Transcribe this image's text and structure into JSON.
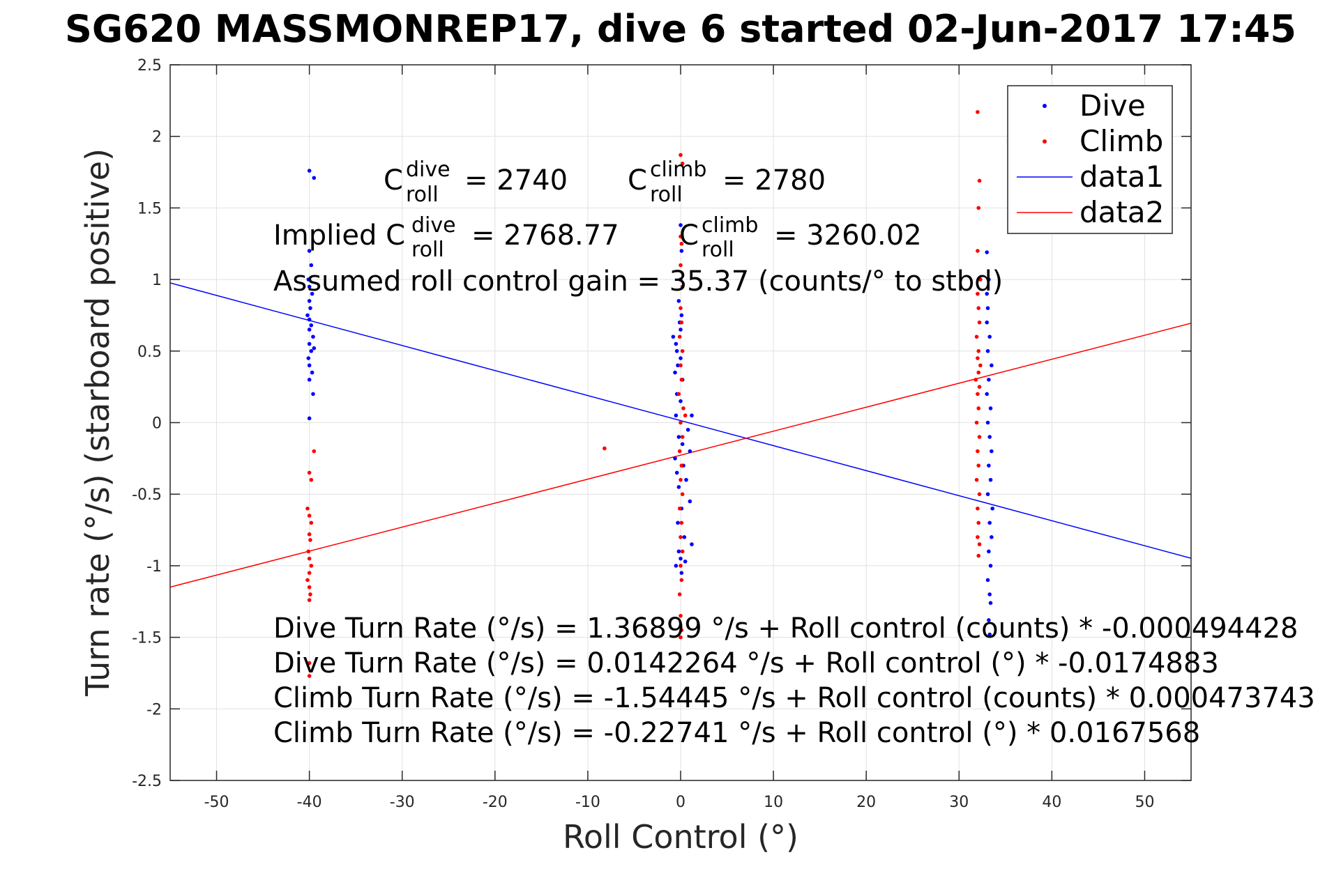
{
  "chart_data": {
    "type": "scatter",
    "title": "SG620 MASSMONREP17, dive 6 started 02-Jun-2017 17:45",
    "xlabel": "Roll Control (°)",
    "ylabel": "Turn rate (°/s) (starboard positive)",
    "xlim": [
      -55,
      55
    ],
    "ylim": [
      -2.5,
      2.5
    ],
    "xticks": [
      -50,
      -40,
      -30,
      -20,
      -10,
      0,
      10,
      20,
      30,
      40,
      50
    ],
    "yticks": [
      2.5,
      2,
      1.5,
      1,
      0.5,
      0,
      -0.5,
      -1,
      -1.5,
      -2,
      -2.5
    ],
    "xtick_labels": [
      "-50",
      "-40",
      "-30",
      "-20",
      "-10",
      "0",
      "10",
      "20",
      "30",
      "40",
      "50"
    ],
    "ytick_labels": [
      "2.5",
      "2",
      "1.5",
      "1",
      "0.5",
      "0",
      "-0.5",
      "-1",
      "-1.5",
      "-2",
      "-2.5"
    ],
    "grid": true,
    "legend_position": "top-right",
    "series": [
      {
        "name": "Dive",
        "kind": "points",
        "color": "#0000ff",
        "points": [
          [
            -40,
            1.76
          ],
          [
            -39.5,
            1.71
          ],
          [
            -40,
            1.2
          ],
          [
            -39.8,
            1.1
          ],
          [
            -40.1,
            1.0
          ],
          [
            -40,
            0.95
          ],
          [
            -39.7,
            0.9
          ],
          [
            -40,
            0.85
          ],
          [
            -39.9,
            0.8
          ],
          [
            -40.2,
            0.75
          ],
          [
            -40,
            0.72
          ],
          [
            -39.8,
            0.68
          ],
          [
            -40,
            0.65
          ],
          [
            -39.6,
            0.6
          ],
          [
            -40,
            0.55
          ],
          [
            -39.8,
            0.5
          ],
          [
            -40.1,
            0.45
          ],
          [
            -39.5,
            0.52
          ],
          [
            -40,
            0.4
          ],
          [
            -39.7,
            0.35
          ],
          [
            -40,
            0.3
          ],
          [
            -39.6,
            0.2
          ],
          [
            -40,
            0.03
          ],
          [
            0,
            1.38
          ],
          [
            0.1,
            1.2
          ],
          [
            0,
            1.0
          ],
          [
            -0.2,
            0.85
          ],
          [
            0.1,
            0.75
          ],
          [
            -0.1,
            0.7
          ],
          [
            0,
            0.65
          ],
          [
            -0.8,
            0.6
          ],
          [
            -0.5,
            0.55
          ],
          [
            -0.4,
            0.5
          ],
          [
            0,
            0.45
          ],
          [
            -0.3,
            0.4
          ],
          [
            -0.6,
            0.35
          ],
          [
            0.2,
            0.3
          ],
          [
            -0.4,
            0.2
          ],
          [
            0,
            0.15
          ],
          [
            -0.5,
            0.05
          ],
          [
            1.2,
            0.05
          ],
          [
            0.8,
            -0.05
          ],
          [
            -0.2,
            -0.1
          ],
          [
            0.2,
            -0.15
          ],
          [
            1.0,
            -0.2
          ],
          [
            -0.6,
            -0.25
          ],
          [
            0.3,
            -0.3
          ],
          [
            -0.4,
            -0.35
          ],
          [
            0.6,
            -0.4
          ],
          [
            -0.2,
            -0.45
          ],
          [
            1.0,
            -0.55
          ],
          [
            0.1,
            -0.6
          ],
          [
            -0.3,
            -0.7
          ],
          [
            0.4,
            -0.8
          ],
          [
            -0.2,
            -0.9
          ],
          [
            1.2,
            -0.85
          ],
          [
            0,
            -0.95
          ],
          [
            -0.5,
            -1.0
          ],
          [
            0.5,
            -0.97
          ],
          [
            0.1,
            -1.05
          ],
          [
            33,
            1.19
          ],
          [
            33.2,
            1.0
          ],
          [
            33,
            0.9
          ],
          [
            33.1,
            0.8
          ],
          [
            33,
            0.7
          ],
          [
            33.3,
            0.6
          ],
          [
            33.1,
            0.5
          ],
          [
            33.5,
            0.4
          ],
          [
            33.2,
            0.3
          ],
          [
            33,
            0.2
          ],
          [
            33.4,
            0.1
          ],
          [
            33.1,
            0.0
          ],
          [
            33.3,
            -0.1
          ],
          [
            33.5,
            -0.2
          ],
          [
            33.2,
            -0.3
          ],
          [
            33.4,
            -0.4
          ],
          [
            33.1,
            -0.5
          ],
          [
            33.6,
            -0.6
          ],
          [
            33.3,
            -0.7
          ],
          [
            33.5,
            -0.8
          ],
          [
            33.2,
            -0.9
          ],
          [
            33.4,
            -1.0
          ],
          [
            33.1,
            -1.1
          ],
          [
            33.3,
            -1.2
          ],
          [
            33.4,
            -1.26
          ],
          [
            33.2,
            -1.38
          ],
          [
            33.3,
            -1.48
          ]
        ]
      },
      {
        "name": "Climb",
        "kind": "points",
        "color": "#ff0000",
        "points": [
          [
            -39.5,
            -0.2
          ],
          [
            -40,
            -0.35
          ],
          [
            -39.8,
            -0.4
          ],
          [
            -40.2,
            -0.6
          ],
          [
            -40,
            -0.65
          ],
          [
            -39.8,
            -0.7
          ],
          [
            -40,
            -0.78
          ],
          [
            -39.9,
            -0.82
          ],
          [
            -40.1,
            -0.9
          ],
          [
            -40,
            -0.95
          ],
          [
            -39.8,
            -1.0
          ],
          [
            -40,
            -1.05
          ],
          [
            -40.2,
            -1.1
          ],
          [
            -40,
            -1.15
          ],
          [
            -39.9,
            -1.2
          ],
          [
            -40,
            -1.24
          ],
          [
            -40,
            -1.68
          ],
          [
            -40,
            -1.77
          ],
          [
            -8.2,
            -0.18
          ],
          [
            0,
            1.87
          ],
          [
            0.2,
            1.81
          ],
          [
            0,
            1.3
          ],
          [
            0.1,
            1.25
          ],
          [
            0,
            1.1
          ],
          [
            0.2,
            0.95
          ],
          [
            0,
            0.8
          ],
          [
            0.1,
            0.7
          ],
          [
            -0.1,
            0.6
          ],
          [
            0.2,
            0.5
          ],
          [
            0,
            0.4
          ],
          [
            0.1,
            0.3
          ],
          [
            -0.2,
            0.2
          ],
          [
            0.3,
            0.1
          ],
          [
            0.5,
            0.05
          ],
          [
            0,
            0.0
          ],
          [
            0.2,
            -0.1
          ],
          [
            -0.1,
            -0.2
          ],
          [
            0.1,
            -0.3
          ],
          [
            0,
            -0.4
          ],
          [
            0.2,
            -0.5
          ],
          [
            -0.1,
            -0.6
          ],
          [
            0.1,
            -0.7
          ],
          [
            0,
            -0.8
          ],
          [
            0.2,
            -0.9
          ],
          [
            0,
            -1.0
          ],
          [
            0.1,
            -1.1
          ],
          [
            -0.1,
            -1.2
          ],
          [
            0,
            -1.35
          ],
          [
            0.1,
            -1.45
          ],
          [
            0,
            -1.5
          ],
          [
            32,
            2.17
          ],
          [
            32.2,
            1.69
          ],
          [
            32.1,
            1.5
          ],
          [
            32,
            1.2
          ],
          [
            32.3,
            1.0
          ],
          [
            32,
            0.9
          ],
          [
            32.1,
            0.8
          ],
          [
            32.2,
            0.7
          ],
          [
            31.9,
            0.6
          ],
          [
            32.1,
            0.5
          ],
          [
            32,
            0.45
          ],
          [
            32.3,
            0.4
          ],
          [
            32.1,
            0.35
          ],
          [
            31.8,
            0.3
          ],
          [
            32.2,
            0.25
          ],
          [
            32,
            0.2
          ],
          [
            32.1,
            0.1
          ],
          [
            31.9,
            0.0
          ],
          [
            32.2,
            -0.1
          ],
          [
            32,
            -0.2
          ],
          [
            32.1,
            -0.3
          ],
          [
            31.9,
            -0.4
          ],
          [
            32.2,
            -0.5
          ],
          [
            32,
            -0.6
          ],
          [
            32.1,
            -0.7
          ],
          [
            32,
            -0.8
          ],
          [
            32.2,
            -0.85
          ],
          [
            32.1,
            -0.93
          ]
        ]
      },
      {
        "name": "data1",
        "kind": "line",
        "color": "#0000ff",
        "intercept": 0.0142264,
        "slope": -0.0174883
      },
      {
        "name": "data2",
        "kind": "line",
        "color": "#ff0000",
        "intercept": -0.22741,
        "slope": 0.0167568
      }
    ],
    "annotations": {
      "c_dive_label": "C",
      "c_dive_sup": "dive",
      "c_dive_sub": "roll",
      "c_dive_value": "= 2740",
      "c_climb_label": "C",
      "c_climb_sup": "climb",
      "c_climb_sub": "roll",
      "c_climb_value": "= 2780",
      "implied_prefix": "Implied C",
      "implied_dive_sup": "dive",
      "implied_dive_sub": "roll",
      "implied_dive_value": "= 2768.77",
      "implied_climb_label": "C",
      "implied_climb_sup": "climb",
      "implied_climb_sub": "roll",
      "implied_climb_value": "= 3260.02",
      "gain": "Assumed roll control gain = 35.37 (counts/° to stbd)",
      "eq1": "Dive Turn Rate (°/s) = 1.36899 °/s + Roll control (counts) * -0.000494428",
      "eq2": "Dive Turn Rate (°/s) = 0.0142264 °/s + Roll control (°) * -0.0174883",
      "eq3": "Climb Turn Rate (°/s) = -1.54445 °/s + Roll control (counts) * 0.000473743",
      "eq4": "Climb Turn Rate (°/s) = -0.22741 °/s + Roll control (°) * 0.0167568"
    }
  }
}
